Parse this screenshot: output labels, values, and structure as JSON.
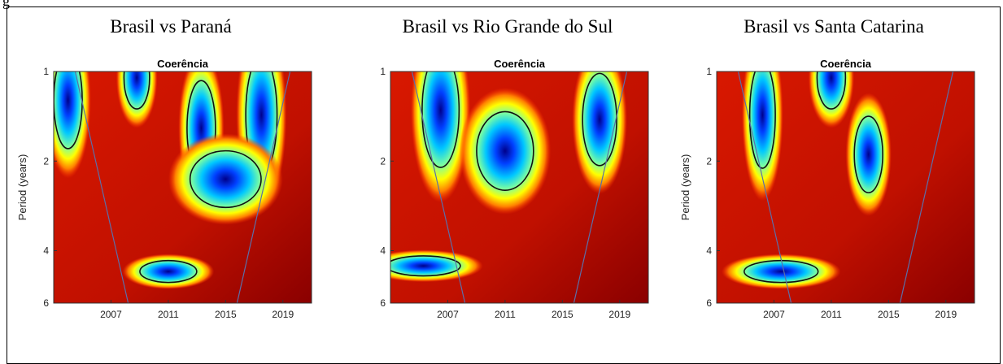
{
  "figure": {
    "label": "g"
  },
  "colors": {
    "low": "#00008b",
    "high": "#b40000",
    "contour": "#111111",
    "coi": "#5b6fa8"
  },
  "chart_data": [
    {
      "type": "heatmap",
      "panel_title": "Brasil vs Paraná",
      "title": "Coerência",
      "xlabel": "",
      "ylabel": "Period (years)",
      "xlim": [
        2003,
        2021
      ],
      "ylim": [
        1,
        6
      ],
      "y_scale": "log2",
      "xticks": [
        "2007",
        "2011",
        "2015",
        "2019"
      ],
      "yticks": [
        "1",
        "2",
        "4",
        "6"
      ],
      "low_coherence_regions": [
        {
          "x": 2004.0,
          "period": 1.25,
          "rx": 1.0,
          "ry": 0.45
        },
        {
          "x": 2008.8,
          "period": 1.05,
          "rx": 0.9,
          "ry": 0.25
        },
        {
          "x": 2013.3,
          "period": 1.55,
          "rx": 1.0,
          "ry": 0.55
        },
        {
          "x": 2017.5,
          "period": 1.4,
          "rx": 1.1,
          "ry": 0.6
        },
        {
          "x": 2011.0,
          "period": 4.7,
          "rx": 2.0,
          "ry": 0.4
        },
        {
          "x": 2015.0,
          "period": 2.3,
          "rx": 2.5,
          "ry": 0.5
        }
      ],
      "y_ticks_values": [
        1,
        2,
        4,
        6
      ],
      "x_ticks_values": [
        2007,
        2011,
        2015,
        2019
      ]
    },
    {
      "type": "heatmap",
      "panel_title": "Brasil vs Rio Grande do Sul",
      "title": "Coerência",
      "xlabel": "",
      "ylabel": "",
      "xlim": [
        2003,
        2021
      ],
      "ylim": [
        1,
        6
      ],
      "y_scale": "log2",
      "xticks": [
        "2007",
        "2011",
        "2015",
        "2019"
      ],
      "yticks": [
        "1",
        "2",
        "4",
        "6"
      ],
      "low_coherence_regions": [
        {
          "x": 2006.5,
          "period": 1.35,
          "rx": 1.3,
          "ry": 0.6
        },
        {
          "x": 2011.0,
          "period": 1.85,
          "rx": 2.0,
          "ry": 0.55
        },
        {
          "x": 2017.6,
          "period": 1.45,
          "rx": 1.2,
          "ry": 0.5
        },
        {
          "x": 2005.3,
          "period": 4.5,
          "rx": 2.6,
          "ry": 0.35
        }
      ],
      "y_ticks_values": [
        1,
        2,
        4,
        6
      ],
      "x_ticks_values": [
        2007,
        2011,
        2015,
        2019
      ]
    },
    {
      "type": "heatmap",
      "panel_title": "Brasil vs Santa Catarina",
      "title": "Coerência",
      "xlabel": "",
      "ylabel": "Period (years)",
      "xlim": [
        2003,
        2021
      ],
      "ylim": [
        1,
        6
      ],
      "y_scale": "log2",
      "xticks": [
        "2007",
        "2011",
        "2015",
        "2019"
      ],
      "yticks": [
        "1",
        "2",
        "4",
        "6"
      ],
      "low_coherence_regions": [
        {
          "x": 2006.2,
          "period": 1.4,
          "rx": 0.9,
          "ry": 0.55
        },
        {
          "x": 2011.0,
          "period": 1.05,
          "rx": 1.0,
          "ry": 0.25
        },
        {
          "x": 2013.6,
          "period": 1.9,
          "rx": 1.0,
          "ry": 0.55
        },
        {
          "x": 2007.5,
          "period": 4.7,
          "rx": 2.6,
          "ry": 0.4
        }
      ],
      "y_ticks_values": [
        1,
        2,
        4,
        6
      ],
      "x_ticks_values": [
        2007,
        2011,
        2015,
        2019
      ]
    }
  ]
}
